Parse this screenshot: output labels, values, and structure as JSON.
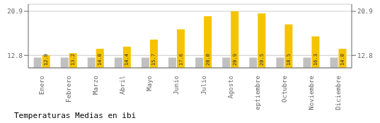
{
  "chart_data": {
    "type": "bar",
    "title": "Temperaturas Medias en ibi",
    "categories": [
      "Enero",
      "Febrero",
      "Marzo",
      "Abril",
      "Mayo",
      "Junio",
      "Julio",
      "Agosto",
      "Septiembre",
      "Octubre",
      "Noviembre",
      "Diciembre"
    ],
    "series": [
      {
        "color": "#C0C0C0",
        "values": [
          12.4,
          12.4,
          12.4,
          12.4,
          12.4,
          12.4,
          12.4,
          12.4,
          12.4,
          12.4,
          12.4,
          12.4
        ]
      },
      {
        "color": "#F5C400",
        "values": [
          12.8,
          13.2,
          14.0,
          14.4,
          15.7,
          17.6,
          20.0,
          20.9,
          20.5,
          18.5,
          16.3,
          14.0
        ],
        "value_labels": [
          "12.8",
          "13.2",
          "14.0",
          "14.4",
          "15.7",
          "17.6",
          "20.0",
          "20.9",
          "20.5",
          "18.5",
          "16.3",
          "14.0"
        ],
        "data_labels": true
      }
    ],
    "ylim": [
      10.5,
      22.2
    ],
    "yticks": [
      12.8,
      20.9
    ],
    "y2lim": [
      10.5,
      22.2
    ],
    "y2ticks": [
      12.8,
      20.9
    ],
    "grid": true
  }
}
